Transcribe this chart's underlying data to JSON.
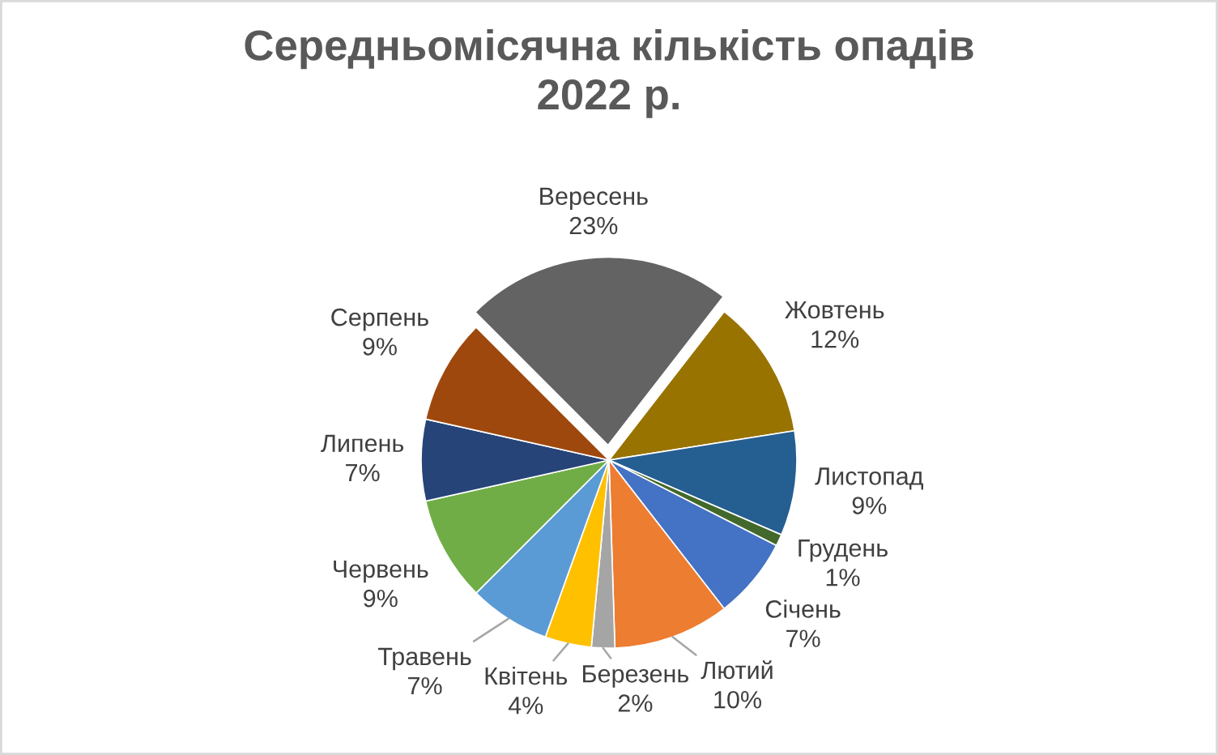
{
  "chart_data": {
    "type": "pie",
    "title": "Середньомісячна кількість опадів\n2022 р.",
    "categories": [
      "Січень",
      "Лютий",
      "Березень",
      "Квітень",
      "Травень",
      "Червень",
      "Липень",
      "Серпень",
      "Вересень",
      "Жовтень",
      "Листопад",
      "Грудень"
    ],
    "values": [
      7,
      10,
      2,
      4,
      7,
      9,
      7,
      9,
      23,
      12,
      9,
      1
    ],
    "colors": [
      "#4472c4",
      "#ed7d31",
      "#a5a5a5",
      "#ffc000",
      "#5b9bd5",
      "#70ad47",
      "#264478",
      "#9e480e",
      "#636363",
      "#997300",
      "#255e91",
      "#43682b"
    ],
    "value_labels": [
      "7%",
      "10%",
      "2%",
      "4%",
      "7%",
      "9%",
      "7%",
      "9%",
      "23%",
      "12%",
      "9%",
      "1%"
    ]
  }
}
